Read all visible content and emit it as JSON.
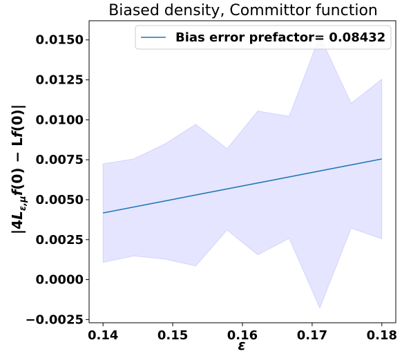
{
  "chart_data": {
    "type": "line",
    "title": "Biased density, Committor function",
    "xlabel": "ε",
    "ylabel": "|4L_{ε,μ}f(0) − Lf(0)|",
    "xlim": [
      0.138,
      0.182
    ],
    "ylim": [
      -0.0027,
      0.0162
    ],
    "x_ticks": [
      0.14,
      0.15,
      0.16,
      0.17,
      0.18
    ],
    "x_tick_labels": [
      "0.14",
      "0.15",
      "0.16",
      "0.17",
      "0.18"
    ],
    "y_ticks": [
      -0.0025,
      0.0,
      0.0025,
      0.005,
      0.0075,
      0.01,
      0.0125,
      0.015
    ],
    "y_tick_labels": [
      "−0.0025",
      "0.0000",
      "0.0025",
      "0.0050",
      "0.0075",
      "0.0100",
      "0.0125",
      "0.0150"
    ],
    "grid": false,
    "legend_position": "top-right",
    "series": [
      {
        "name": "Bias error prefactor= 0.08432",
        "color": "#1f77b4",
        "x": [
          0.14,
          0.18
        ],
        "y": [
          0.00417,
          0.00755
        ]
      }
    ],
    "band": {
      "color": "#0000ff",
      "opacity": 0.1,
      "x": [
        0.14,
        0.1444,
        0.1489,
        0.1533,
        0.1578,
        0.1622,
        0.1667,
        0.1711,
        0.1756,
        0.18
      ],
      "upper": [
        0.00725,
        0.00755,
        0.0085,
        0.00972,
        0.0082,
        0.01055,
        0.01022,
        0.01525,
        0.01103,
        0.01255
      ],
      "lower": [
        0.00108,
        0.00148,
        0.00128,
        0.00085,
        0.0031,
        0.00155,
        0.00258,
        -0.00178,
        0.00322,
        0.00255
      ]
    }
  }
}
